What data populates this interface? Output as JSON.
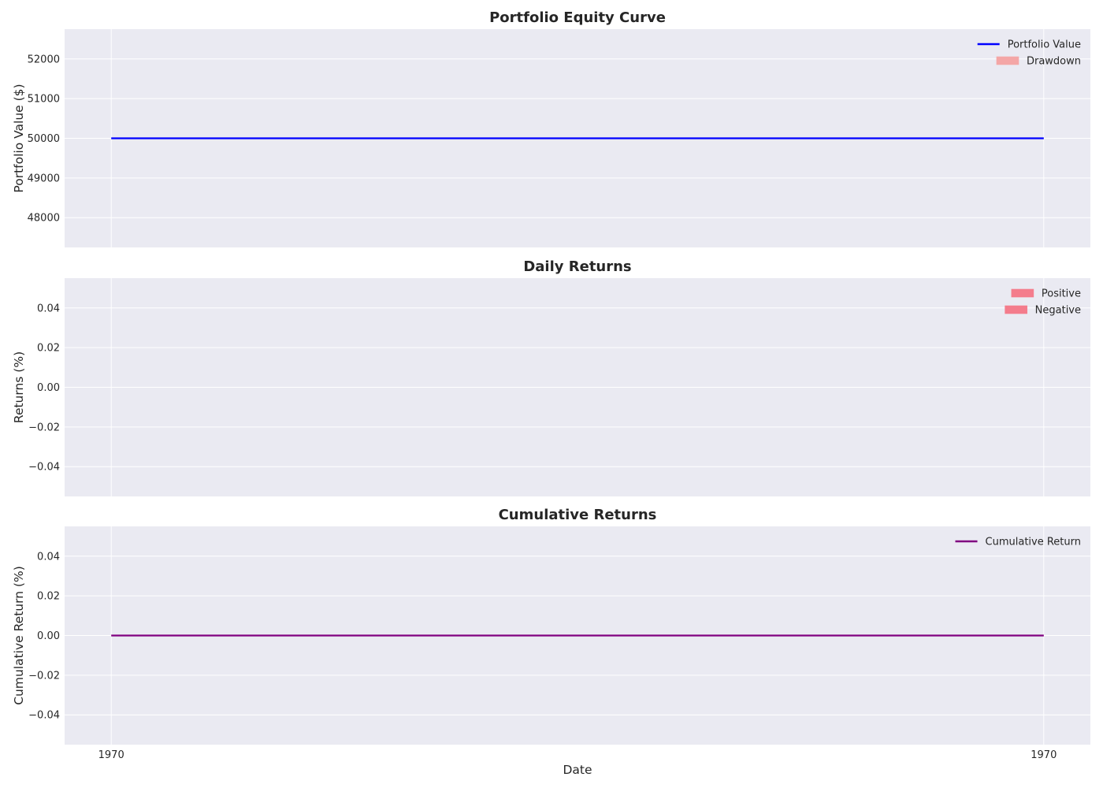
{
  "chart_data": [
    {
      "type": "line",
      "title": "Portfolio Equity Curve",
      "ylabel": "Portfolio Value ($)",
      "xlabel": "",
      "ylim": [
        47250,
        52750
      ],
      "yticks": [
        48000,
        49000,
        50000,
        51000,
        52000
      ],
      "ytick_labels": [
        "48000",
        "49000",
        "50000",
        "51000",
        "52000"
      ],
      "legend_position": "top-right",
      "grid": true,
      "series": [
        {
          "name": "Portfolio Value",
          "kind": "line",
          "color": "#0000ff",
          "x": [
            0,
            1
          ],
          "values": [
            50000,
            50000
          ]
        }
      ],
      "legend": [
        {
          "label": "Portfolio Value",
          "kind": "line",
          "color": "#0000ff"
        },
        {
          "label": "Drawdown",
          "kind": "patch",
          "color": "#f4a6a6"
        }
      ]
    },
    {
      "type": "bar",
      "title": "Daily Returns",
      "ylabel": "Returns (%)",
      "xlabel": "",
      "ylim": [
        -0.055,
        0.055
      ],
      "yticks": [
        -0.04,
        -0.02,
        0.0,
        0.02,
        0.04
      ],
      "ytick_labels": [
        "−0.04",
        "−0.02",
        "0.00",
        "0.02",
        "0.04"
      ],
      "legend_position": "top-right",
      "grid": true,
      "series": [],
      "legend": [
        {
          "label": "Positive",
          "kind": "patch",
          "color": "#f47c8c"
        },
        {
          "label": "Negative",
          "kind": "patch",
          "color": "#f47c8c"
        }
      ]
    },
    {
      "type": "line",
      "title": "Cumulative Returns",
      "ylabel": "Cumulative Return (%)",
      "xlabel": "Date",
      "ylim": [
        -0.055,
        0.055
      ],
      "yticks": [
        -0.04,
        -0.02,
        0.0,
        0.02,
        0.04
      ],
      "ytick_labels": [
        "−0.04",
        "−0.02",
        "0.00",
        "0.02",
        "0.04"
      ],
      "legend_position": "top-right",
      "grid": true,
      "series": [
        {
          "name": "Cumulative Return",
          "kind": "line",
          "color": "#800080",
          "x": [
            0,
            1
          ],
          "values": [
            0.0,
            0.0
          ]
        }
      ],
      "legend": [
        {
          "label": "Cumulative Return",
          "kind": "line",
          "color": "#800080"
        }
      ]
    }
  ],
  "x_axis": {
    "xlim": [
      -0.05,
      1.05
    ],
    "ticks": [
      0,
      1
    ],
    "tick_labels": [
      "1970",
      "1970"
    ]
  }
}
